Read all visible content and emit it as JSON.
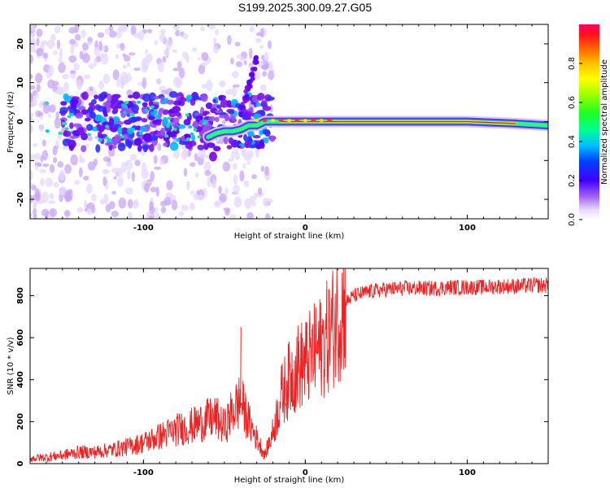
{
  "title": "S199.2025.300.09.27.G05",
  "colors": {
    "snr_line": "#ee2222",
    "axis": "#000000",
    "low_amp": "#b9a2f5",
    "mid_amp": "#7a10ea"
  },
  "chart_data": [
    {
      "type": "heatmap",
      "xlabel": "Height of straight line (km)",
      "ylabel": "Frequency (Hz)",
      "xlim": [
        -170,
        150
      ],
      "ylim": [
        -25,
        25
      ],
      "xticks": [
        -100,
        0,
        100
      ],
      "yticks": [
        -20,
        -10,
        0,
        10,
        20
      ],
      "colorbar": {
        "label": "Normalized spectral amplitude",
        "range": [
          0,
          1
        ],
        "ticks": [
          0.0,
          0.2,
          0.4,
          0.6,
          0.8
        ]
      },
      "ridge": [
        {
          "x": -60,
          "y": -4
        },
        {
          "x": -55,
          "y": -3
        },
        {
          "x": -50,
          "y": -2.5
        },
        {
          "x": -45,
          "y": -2.5
        },
        {
          "x": -40,
          "y": -2
        },
        {
          "x": -35,
          "y": -1
        },
        {
          "x": -30,
          "y": -1
        },
        {
          "x": -25,
          "y": 0
        },
        {
          "x": -15,
          "y": 0
        },
        {
          "x": 0,
          "y": 0
        },
        {
          "x": 50,
          "y": 0
        },
        {
          "x": 100,
          "y": 0
        },
        {
          "x": 130,
          "y": -0.5
        },
        {
          "x": 150,
          "y": -1
        }
      ]
    },
    {
      "type": "line",
      "xlabel": "Height of straight line (km)",
      "ylabel": "SNR (10 * v/v)",
      "xlim": [
        -170,
        150
      ],
      "ylim": [
        0,
        930
      ],
      "xticks": [
        -100,
        0,
        100
      ],
      "yticks": [
        0,
        200,
        400,
        600,
        800
      ],
      "series": [
        {
          "name": "SNR",
          "x": [
            -170,
            -160,
            -150,
            -140,
            -130,
            -120,
            -110,
            -100,
            -90,
            -80,
            -70,
            -60,
            -55,
            -50,
            -45,
            -40,
            -35,
            -30,
            -25,
            -20,
            -15,
            -10,
            -5,
            0,
            5,
            10,
            15,
            20,
            25,
            30,
            40,
            50,
            60,
            70,
            80,
            90,
            100,
            110,
            120,
            130,
            140,
            150
          ],
          "values": [
            25,
            30,
            40,
            55,
            55,
            65,
            80,
            100,
            130,
            160,
            180,
            210,
            220,
            170,
            250,
            300,
            200,
            120,
            40,
            150,
            320,
            400,
            460,
            480,
            520,
            560,
            620,
            700,
            770,
            800,
            820,
            830,
            835,
            835,
            835,
            840,
            840,
            840,
            845,
            845,
            850,
            850
          ]
        }
      ],
      "annotations": [
        {
          "x": -40,
          "y": 650,
          "text": ""
        },
        {
          "x": 13,
          "y": 830,
          "text": ""
        }
      ]
    }
  ]
}
